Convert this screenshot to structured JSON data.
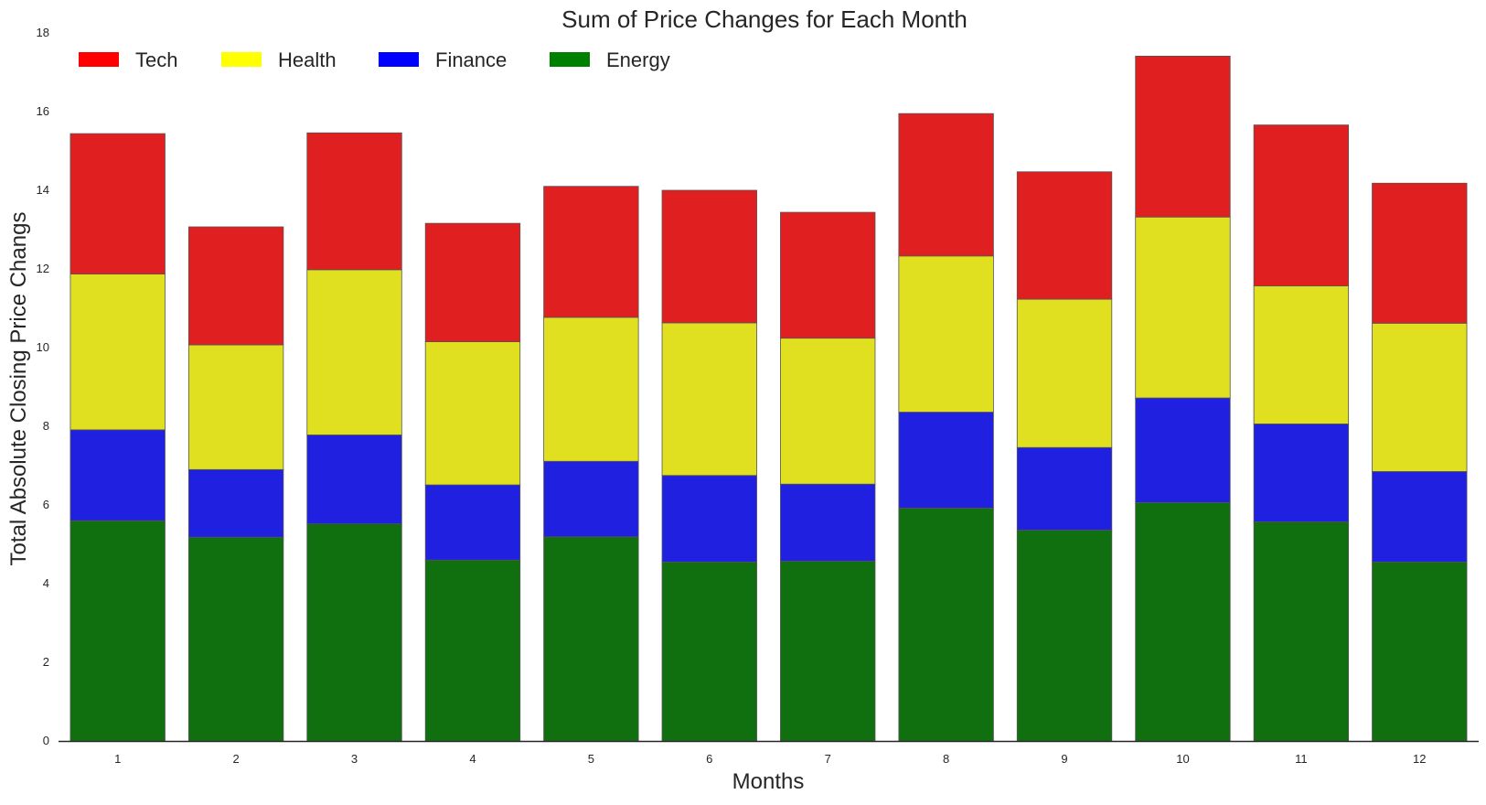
{
  "chart_data": {
    "type": "bar",
    "stacked": true,
    "title": "Sum of Price Changes for Each Month",
    "xlabel": "Months",
    "ylabel": "Total Absolute Closing Price Changs",
    "categories": [
      "1",
      "2",
      "3",
      "4",
      "5",
      "6",
      "7",
      "8",
      "9",
      "10",
      "11",
      "12"
    ],
    "ylim": [
      0,
      18
    ],
    "yticks": [
      0,
      2,
      4,
      6,
      8,
      10,
      12,
      14,
      16,
      18
    ],
    "grid": false,
    "legend": {
      "placement": "top-left",
      "orientation": "horizontal"
    },
    "series": [
      {
        "name": "Energy",
        "color": "#107010",
        "values": [
          5.6,
          5.18,
          5.52,
          4.6,
          5.19,
          4.55,
          4.57,
          5.92,
          5.36,
          6.06,
          5.57,
          4.55
        ]
      },
      {
        "name": "Finance",
        "color": "#2020e0",
        "values": [
          2.31,
          1.72,
          2.26,
          1.91,
          1.92,
          2.2,
          1.96,
          2.44,
          2.1,
          2.66,
          2.49,
          2.3
        ]
      },
      {
        "name": "Health",
        "color": "#e0e020",
        "values": [
          3.96,
          3.17,
          4.2,
          3.64,
          3.66,
          3.88,
          3.71,
          3.97,
          3.77,
          4.6,
          3.51,
          3.77
        ]
      },
      {
        "name": "Tech",
        "color": "#e02020",
        "values": [
          3.57,
          3.0,
          3.48,
          3.01,
          3.33,
          3.37,
          3.2,
          3.62,
          3.24,
          4.09,
          4.09,
          3.56
        ]
      }
    ],
    "legend_entries": [
      {
        "name": "Tech",
        "color": "#ff0000"
      },
      {
        "name": "Health",
        "color": "#ffff00"
      },
      {
        "name": "Finance",
        "color": "#0000ff"
      },
      {
        "name": "Energy",
        "color": "#008000"
      }
    ]
  }
}
